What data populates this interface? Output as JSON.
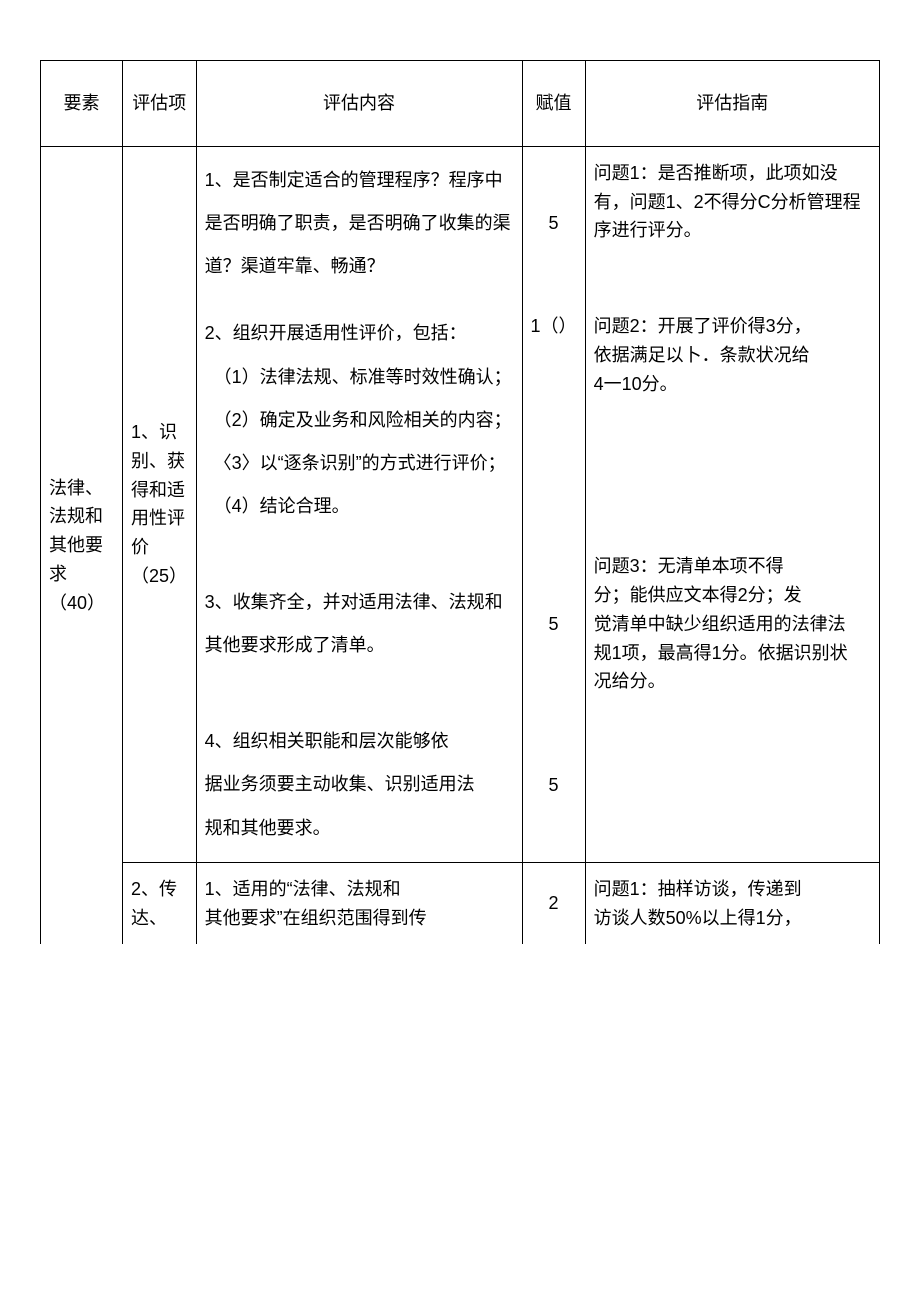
{
  "header": {
    "element": "要素",
    "item": "评估项",
    "content": "评估内容",
    "value": "赋值",
    "guide": "评估指南"
  },
  "row1": {
    "element": "法律、法规和其他要求（40）",
    "item": "1、识别、获得和适用性评价（25）",
    "content_a": "1、是否制定适合的管理程序？程序中是否明确了职责，是否明确了收集的渠道？渠道牢靠、畅通？",
    "value_a": "5",
    "guide_a": "问题1：是否推断项，此项如没有，问题1、2不得分C分析管理程序进行评分。",
    "content_b": "2、组织开展适用性评价，包括：\n　（1）法律法规、标准等时效性确认；\n　（2）确定及业务和风险相关的内容；\n　〈3〉以“逐条识别”的方式进行评价；\n　（4）结论合理。",
    "value_b": "1（）",
    "guide_b": "问题2：开展了评价得3分，\n依据满足以卜．条款状况给\n4一10分。",
    "content_c": "3、收集齐全，并对适用法律、法规和其他要求形成了清单。",
    "value_c": "5",
    "guide_c": "问题3：无清单本项不得\n分；能供应文本得2分；发\n觉清单中缺少组织适用的法律法\n规1项，最高得1分。依据识别状\n况给分。",
    "content_d": "4、组织相关职能和层次能够依\n据业务须要主动收集、识别适用法\n规和其他要求。",
    "value_d": "5",
    "guide_d": ""
  },
  "row2": {
    "item": "2、传达、",
    "content": "1、适用的“法律、法规和\n其他要求”在组织范围得到传",
    "value": "2",
    "guide": "问题1：抽样访谈，传递到\n访谈人数50%以上得1分，"
  }
}
